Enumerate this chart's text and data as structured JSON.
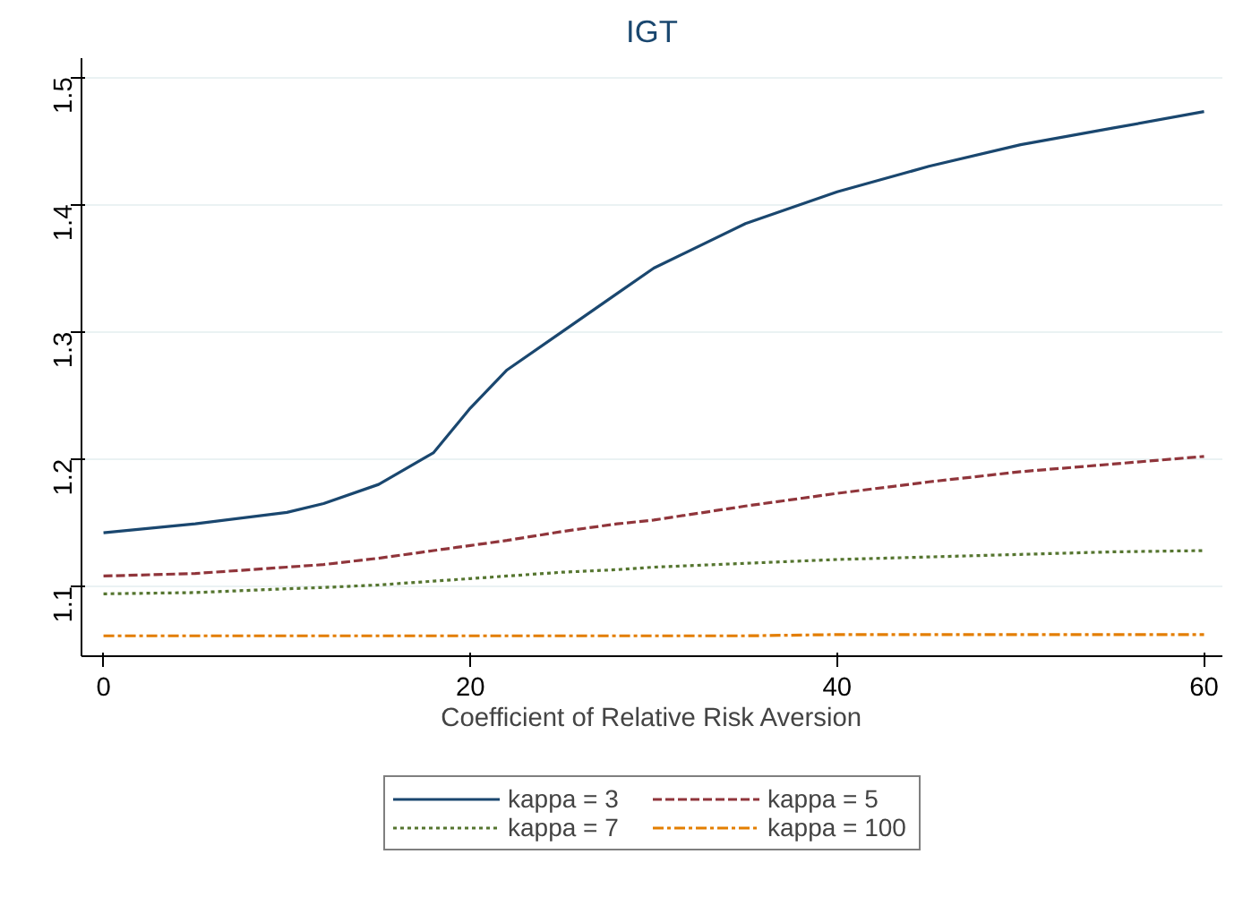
{
  "chart_data": {
    "type": "line",
    "title": "IGT",
    "xlabel": "Coefficient of Relative Risk Aversion",
    "x": [
      0,
      5,
      10,
      12,
      15,
      18,
      20,
      22,
      25,
      28,
      30,
      35,
      40,
      45,
      50,
      55,
      60
    ],
    "series": [
      {
        "name": "kappa = 3",
        "color": "#1a476f",
        "line_style": "solid",
        "values": [
          1.142,
          1.149,
          1.158,
          1.165,
          1.18,
          1.205,
          1.24,
          1.27,
          1.3,
          1.33,
          1.35,
          1.385,
          1.41,
          1.43,
          1.447,
          1.46,
          1.473
        ]
      },
      {
        "name": "kappa = 5",
        "color": "#90353b",
        "line_style": "dashed",
        "values": [
          1.108,
          1.11,
          1.115,
          1.117,
          1.122,
          1.128,
          1.132,
          1.136,
          1.143,
          1.149,
          1.152,
          1.163,
          1.173,
          1.182,
          1.19,
          1.196,
          1.202
        ]
      },
      {
        "name": "kappa = 7",
        "color": "#55752f",
        "line_style": "dotted",
        "values": [
          1.094,
          1.095,
          1.098,
          1.099,
          1.101,
          1.104,
          1.106,
          1.108,
          1.111,
          1.113,
          1.115,
          1.118,
          1.121,
          1.123,
          1.125,
          1.127,
          1.128
        ]
      },
      {
        "name": "kappa = 100",
        "color": "#e37e00",
        "line_style": "dashdot",
        "values": [
          1.061,
          1.061,
          1.061,
          1.061,
          1.061,
          1.061,
          1.061,
          1.061,
          1.061,
          1.061,
          1.061,
          1.061,
          1.062,
          1.062,
          1.062,
          1.062,
          1.062
        ]
      }
    ],
    "xlim": [
      -1.2,
      61
    ],
    "ylim": [
      1.045,
      1.515
    ],
    "xticks": [
      0,
      20,
      40,
      60
    ],
    "yticks": [
      1.1,
      1.2,
      1.3,
      1.4,
      1.5
    ],
    "grid": "y",
    "legend": "bottom",
    "marker": "none"
  }
}
